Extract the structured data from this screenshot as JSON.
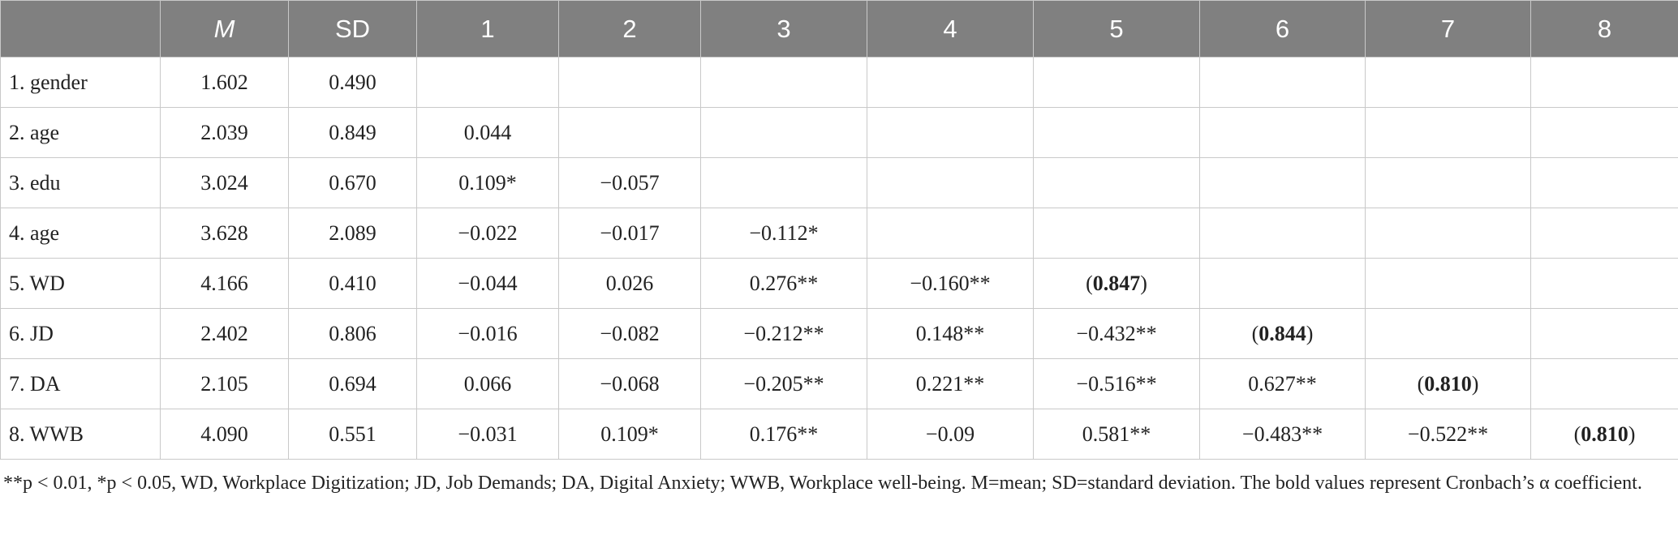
{
  "table": {
    "headers": [
      "",
      "M",
      "SD",
      "1",
      "2",
      "3",
      "4",
      "5",
      "6",
      "7",
      "8"
    ],
    "rows": [
      [
        "1. gender",
        "1.602",
        "0.490",
        "",
        "",
        "",
        "",
        "",
        "",
        "",
        ""
      ],
      [
        "2. age",
        "2.039",
        "0.849",
        "0.044",
        "",
        "",
        "",
        "",
        "",
        "",
        ""
      ],
      [
        "3. edu",
        "3.024",
        "0.670",
        "0.109*",
        "−0.057",
        "",
        "",
        "",
        "",
        "",
        ""
      ],
      [
        "4. age",
        "3.628",
        "2.089",
        "−0.022",
        "−0.017",
        "−0.112*",
        "",
        "",
        "",
        "",
        ""
      ],
      [
        "5. WD",
        "4.166",
        "0.410",
        "−0.044",
        "0.026",
        "0.276**",
        "−0.160**",
        "0.847",
        "",
        "",
        ""
      ],
      [
        "6. JD",
        "2.402",
        "0.806",
        "−0.016",
        "−0.082",
        "−0.212**",
        "0.148**",
        "−0.432**",
        "0.844",
        "",
        ""
      ],
      [
        "7. DA",
        "2.105",
        "0.694",
        "0.066",
        "−0.068",
        "−0.205**",
        "0.221**",
        "−0.516**",
        "0.627**",
        "0.810",
        ""
      ],
      [
        "8. WWB",
        "4.090",
        "0.551",
        "−0.031",
        "0.109*",
        "0.176**",
        "−0.09",
        "0.581**",
        "−0.483**",
        "−0.522**",
        "0.810"
      ]
    ]
  },
  "note": {
    "p01": "**p < 0.01",
    "p05": "*p < 0.05",
    "text": "WD, Workplace Digitization; JD, Job Demands; DA, Digital Anxiety; WWB, Workplace well-being. M=mean; SD=standard deviation. The bold values represent Cronbach’s α coefficient."
  }
}
